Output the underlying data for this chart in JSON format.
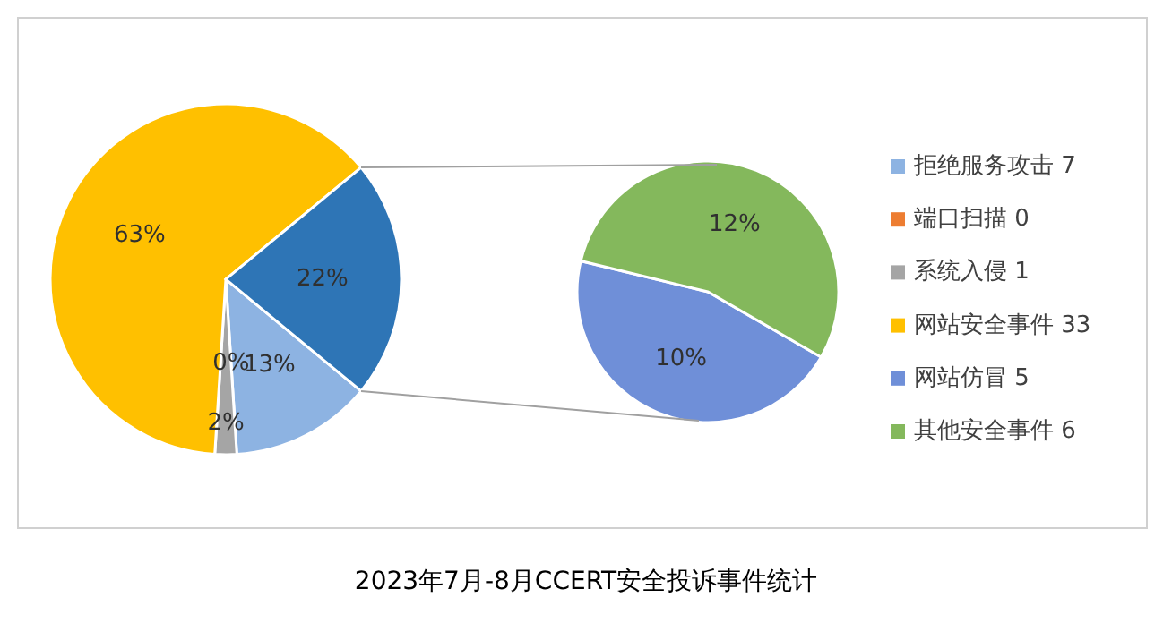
{
  "chart_data": [
    {
      "type": "pie",
      "categories": [
        "拒绝服务攻击 7",
        "端口扫描 0",
        "系统入侵 1",
        "网站安全事件 33",
        null
      ],
      "values": [
        13,
        0,
        2,
        63,
        22
      ],
      "value_labels": [
        "13%",
        "0%",
        "2%",
        "63%",
        "22%"
      ],
      "colors": [
        "#8db3e2",
        "#ed7d31",
        "#a5a5a5",
        "#ffc000",
        "#2e75b6"
      ],
      "legend": "right"
    },
    {
      "type": "pie",
      "title": "2023年7月-8月CCERT安全投诉事件统计",
      "categories": [
        "网站仿冒 5",
        "其他安全事件 6"
      ],
      "values": [
        10,
        12
      ],
      "value_labels": [
        "10%",
        "12%"
      ],
      "colors": [
        "#6f8fd8",
        "#84b85c"
      ],
      "legend": "right"
    }
  ]
}
